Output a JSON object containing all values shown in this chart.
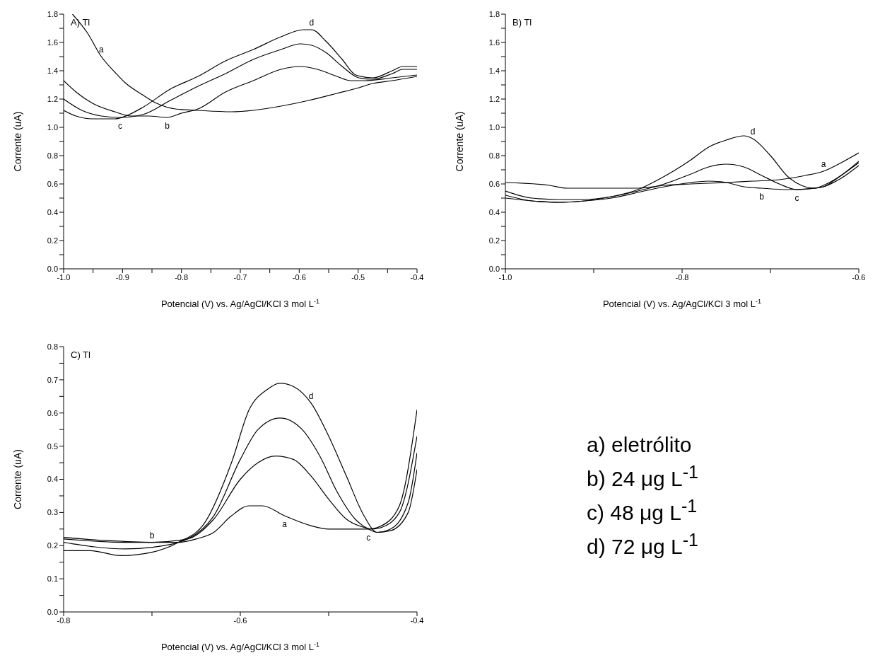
{
  "chart_data": [
    {
      "type": "line",
      "title": "A) Tl",
      "xlabel": "Potencial (V) vs. Ag/AgCl/KCl 3 mol L$^{-1}$",
      "ylabel": "Corrente (uA)",
      "marker": "none",
      "line_style": "solid",
      "xlim": [
        -1.0,
        -0.4
      ],
      "ylim": [
        0,
        1.8
      ],
      "xticks": [
        {
          "value": -1.0,
          "label": "-1.0"
        },
        {
          "value": -0.95,
          "label": null
        },
        {
          "value": -0.9,
          "label": "-0.9"
        },
        {
          "value": -0.85,
          "label": null
        },
        {
          "value": -0.8,
          "label": "-0.8"
        },
        {
          "value": -0.75,
          "label": null
        },
        {
          "value": -0.7,
          "label": "-0.7"
        },
        {
          "value": -0.65,
          "label": null
        },
        {
          "value": -0.6,
          "label": "-0.6"
        },
        {
          "value": -0.55,
          "label": null
        },
        {
          "value": -0.5,
          "label": "-0.5"
        },
        {
          "value": -0.45,
          "label": null
        },
        {
          "value": -0.4,
          "label": "-0.4"
        }
      ],
      "yticks": [
        {
          "value": 0,
          "label": "0.0"
        },
        {
          "value": 0.1,
          "label": null
        },
        {
          "value": 0.2,
          "label": "0.2"
        },
        {
          "value": 0.3,
          "label": null
        },
        {
          "value": 0.4,
          "label": "0.4"
        },
        {
          "value": 0.5,
          "label": null
        },
        {
          "value": 0.6,
          "label": "0.6"
        },
        {
          "value": 0.7,
          "label": null
        },
        {
          "value": 0.8,
          "label": "0.8"
        },
        {
          "value": 0.9,
          "label": null
        },
        {
          "value": 1.0,
          "label": "1.0"
        },
        {
          "value": 1.1,
          "label": null
        },
        {
          "value": 1.2,
          "label": "1.2"
        },
        {
          "value": 1.3,
          "label": null
        },
        {
          "value": 1.4,
          "label": "1.4"
        },
        {
          "value": 1.5,
          "label": null
        },
        {
          "value": 1.6,
          "label": "1.6"
        },
        {
          "value": 1.7,
          "label": null
        },
        {
          "value": 1.8,
          "label": "1.8"
        }
      ],
      "series": [
        {
          "name": "a",
          "color": "#000000",
          "x": [
            -0.985,
            -0.96,
            -0.936,
            -0.913,
            -0.894,
            -0.866,
            -0.842,
            -0.81,
            -0.772,
            -0.715,
            -0.678,
            -0.631,
            -0.584,
            -0.536,
            -0.499,
            -0.475,
            -0.442,
            -0.4
          ],
          "values": [
            1.8,
            1.67,
            1.5,
            1.39,
            1.31,
            1.23,
            1.17,
            1.13,
            1.12,
            1.11,
            1.12,
            1.15,
            1.19,
            1.24,
            1.28,
            1.31,
            1.33,
            1.36
          ]
        },
        {
          "name": "b",
          "color": "#000000",
          "x": [
            -1.0,
            -0.979,
            -0.951,
            -0.913,
            -0.885,
            -0.856,
            -0.824,
            -0.8,
            -0.772,
            -0.725,
            -0.678,
            -0.631,
            -0.598,
            -0.569,
            -0.536,
            -0.513,
            -0.489,
            -0.442,
            -0.4
          ],
          "values": [
            1.33,
            1.25,
            1.17,
            1.11,
            1.08,
            1.08,
            1.07,
            1.1,
            1.13,
            1.25,
            1.33,
            1.41,
            1.43,
            1.41,
            1.36,
            1.33,
            1.33,
            1.35,
            1.37
          ]
        },
        {
          "name": "c",
          "color": "#000000",
          "x": [
            -1.0,
            -0.969,
            -0.936,
            -0.904,
            -0.866,
            -0.819,
            -0.772,
            -0.725,
            -0.678,
            -0.631,
            -0.598,
            -0.579,
            -0.555,
            -0.527,
            -0.499,
            -0.475,
            -0.442,
            -0.424,
            -0.4
          ],
          "values": [
            1.2,
            1.12,
            1.08,
            1.07,
            1.09,
            1.19,
            1.29,
            1.38,
            1.48,
            1.55,
            1.59,
            1.58,
            1.53,
            1.43,
            1.35,
            1.34,
            1.38,
            1.41,
            1.41
          ]
        },
        {
          "name": "d",
          "color": "#000000",
          "x": [
            -1.0,
            -0.979,
            -0.951,
            -0.913,
            -0.889,
            -0.866,
            -0.819,
            -0.772,
            -0.725,
            -0.678,
            -0.631,
            -0.593,
            -0.579,
            -0.555,
            -0.527,
            -0.504,
            -0.475,
            -0.442,
            -0.424,
            -0.4
          ],
          "values": [
            1.12,
            1.08,
            1.06,
            1.06,
            1.09,
            1.14,
            1.27,
            1.36,
            1.47,
            1.55,
            1.64,
            1.69,
            1.69,
            1.61,
            1.48,
            1.37,
            1.35,
            1.4,
            1.43,
            1.43
          ]
        }
      ]
    },
    {
      "type": "line",
      "title": "B) Tl",
      "xlabel": "Potencial (V) vs. Ag/AgCl/KCl 3 mol L$^{-1}$",
      "ylabel": "Corrente (uA)",
      "marker": "none",
      "line_style": "solid",
      "xlim": [
        -1.0,
        -0.6
      ],
      "ylim": [
        0,
        1.8
      ],
      "xticks": [
        {
          "value": -1.0,
          "label": "-1.0"
        },
        {
          "value": -0.9,
          "label": null
        },
        {
          "value": -0.8,
          "label": "-0.8"
        },
        {
          "value": -0.7,
          "label": null
        },
        {
          "value": -0.6,
          "label": "-0.6"
        }
      ],
      "yticks": [
        {
          "value": 0,
          "label": "0.0"
        },
        {
          "value": 0.1,
          "label": null
        },
        {
          "value": 0.2,
          "label": "0.2"
        },
        {
          "value": 0.3,
          "label": null
        },
        {
          "value": 0.4,
          "label": "0.4"
        },
        {
          "value": 0.5,
          "label": null
        },
        {
          "value": 0.6,
          "label": "0.6"
        },
        {
          "value": 0.7,
          "label": null
        },
        {
          "value": 0.8,
          "label": "0.8"
        },
        {
          "value": 0.9,
          "label": null
        },
        {
          "value": 1.0,
          "label": "1.0"
        },
        {
          "value": 1.1,
          "label": null
        },
        {
          "value": 1.2,
          "label": "1.2"
        },
        {
          "value": 1.3,
          "label": null
        },
        {
          "value": 1.4,
          "label": "1.4"
        },
        {
          "value": 1.5,
          "label": null
        },
        {
          "value": 1.6,
          "label": "1.6"
        },
        {
          "value": 1.7,
          "label": null
        },
        {
          "value": 1.8,
          "label": "1.8"
        }
      ],
      "series": [
        {
          "name": "a",
          "color": "#000000",
          "x": [
            -1.0,
            -0.95,
            -0.93,
            -0.89,
            -0.85,
            -0.82,
            -0.79,
            -0.75,
            -0.72,
            -0.69,
            -0.66,
            -0.64,
            -0.62,
            -0.6
          ],
          "values": [
            0.61,
            0.59,
            0.57,
            0.57,
            0.57,
            0.59,
            0.6,
            0.61,
            0.62,
            0.63,
            0.66,
            0.69,
            0.75,
            0.82
          ]
        },
        {
          "name": "b",
          "color": "#000000",
          "x": [
            -1.0,
            -0.97,
            -0.94,
            -0.91,
            -0.88,
            -0.85,
            -0.82,
            -0.79,
            -0.77,
            -0.75,
            -0.73,
            -0.71,
            -0.68,
            -0.65,
            -0.64,
            -0.62,
            -0.6
          ],
          "values": [
            0.52,
            0.48,
            0.47,
            0.48,
            0.5,
            0.54,
            0.58,
            0.61,
            0.62,
            0.61,
            0.58,
            0.57,
            0.56,
            0.57,
            0.58,
            0.64,
            0.73
          ]
        },
        {
          "name": "c",
          "color": "#000000",
          "x": [
            -1.0,
            -0.97,
            -0.94,
            -0.91,
            -0.88,
            -0.85,
            -0.82,
            -0.79,
            -0.77,
            -0.75,
            -0.73,
            -0.71,
            -0.69,
            -0.67,
            -0.65,
            -0.64,
            -0.62,
            -0.6
          ],
          "values": [
            0.55,
            0.5,
            0.49,
            0.49,
            0.51,
            0.55,
            0.6,
            0.67,
            0.72,
            0.74,
            0.72,
            0.66,
            0.6,
            0.56,
            0.57,
            0.58,
            0.66,
            0.75
          ]
        },
        {
          "name": "d",
          "color": "#000000",
          "x": [
            -1.0,
            -0.97,
            -0.94,
            -0.91,
            -0.88,
            -0.85,
            -0.83,
            -0.81,
            -0.79,
            -0.77,
            -0.75,
            -0.73,
            -0.72,
            -0.7,
            -0.68,
            -0.665,
            -0.65,
            -0.64,
            -0.62,
            -0.6
          ],
          "values": [
            0.5,
            0.48,
            0.47,
            0.48,
            0.51,
            0.56,
            0.62,
            0.69,
            0.77,
            0.86,
            0.91,
            0.94,
            0.92,
            0.8,
            0.65,
            0.59,
            0.57,
            0.59,
            0.66,
            0.76
          ]
        }
      ]
    },
    {
      "type": "line",
      "title": "C) Tl",
      "xlabel": "Potencial (V) vs. Ag/AgCl/KCl 3 mol L$^{-1}$",
      "ylabel": "Corrente (uA)",
      "marker": "none",
      "line_style": "solid",
      "xlim": [
        -0.8,
        -0.4
      ],
      "ylim": [
        0,
        0.8
      ],
      "xticks": [
        {
          "value": -0.8,
          "label": "-0.8"
        },
        {
          "value": -0.7,
          "label": null
        },
        {
          "value": -0.6,
          "label": "-0.6"
        },
        {
          "value": -0.5,
          "label": null
        },
        {
          "value": -0.4,
          "label": "-0.4"
        }
      ],
      "yticks": [
        {
          "value": 0,
          "label": "0.0"
        },
        {
          "value": 0.05,
          "label": null
        },
        {
          "value": 0.1,
          "label": "0.1"
        },
        {
          "value": 0.15,
          "label": null
        },
        {
          "value": 0.2,
          "label": "0.2"
        },
        {
          "value": 0.25,
          "label": null
        },
        {
          "value": 0.3,
          "label": "0.3"
        },
        {
          "value": 0.35,
          "label": null
        },
        {
          "value": 0.4,
          "label": "0.4"
        },
        {
          "value": 0.45,
          "label": null
        },
        {
          "value": 0.5,
          "label": "0.5"
        },
        {
          "value": 0.55,
          "label": null
        },
        {
          "value": 0.6,
          "label": "0.6"
        },
        {
          "value": 0.65,
          "label": null
        },
        {
          "value": 0.7,
          "label": "0.7"
        },
        {
          "value": 0.75,
          "label": null
        },
        {
          "value": 0.8,
          "label": "0.8"
        }
      ],
      "series": [
        {
          "name": "a",
          "color": "#000000",
          "x": [
            -0.8,
            -0.73,
            -0.7,
            -0.67,
            -0.65,
            -0.63,
            -0.61,
            -0.59,
            -0.575,
            -0.55,
            -0.52,
            -0.5,
            -0.47,
            -0.455,
            -0.44,
            -0.42,
            -0.4
          ],
          "values": [
            0.22,
            0.21,
            0.21,
            0.21,
            0.22,
            0.24,
            0.29,
            0.32,
            0.32,
            0.29,
            0.26,
            0.25,
            0.25,
            0.25,
            0.26,
            0.32,
            0.61
          ]
        },
        {
          "name": "b",
          "color": "#000000",
          "x": [
            -0.8,
            -0.75,
            -0.7,
            -0.66,
            -0.63,
            -0.6,
            -0.58,
            -0.56,
            -0.54,
            -0.52,
            -0.5,
            -0.48,
            -0.46,
            -0.45,
            -0.44,
            -0.42,
            -0.4
          ],
          "values": [
            0.225,
            0.215,
            0.21,
            0.22,
            0.28,
            0.4,
            0.45,
            0.47,
            0.46,
            0.41,
            0.34,
            0.28,
            0.255,
            0.25,
            0.255,
            0.3,
            0.53
          ]
        },
        {
          "name": "c",
          "color": "#000000",
          "x": [
            -0.8,
            -0.73,
            -0.7,
            -0.66,
            -0.63,
            -0.6,
            -0.58,
            -0.555,
            -0.53,
            -0.51,
            -0.49,
            -0.47,
            -0.455,
            -0.445,
            -0.43,
            -0.41,
            -0.4
          ],
          "values": [
            0.21,
            0.19,
            0.195,
            0.22,
            0.29,
            0.46,
            0.55,
            0.585,
            0.55,
            0.47,
            0.36,
            0.28,
            0.25,
            0.24,
            0.25,
            0.33,
            0.48
          ]
        },
        {
          "name": "d",
          "color": "#000000",
          "x": [
            -0.8,
            -0.77,
            -0.735,
            -0.7,
            -0.67,
            -0.64,
            -0.61,
            -0.59,
            -0.57,
            -0.555,
            -0.54,
            -0.52,
            -0.5,
            -0.48,
            -0.46,
            -0.445,
            -0.43,
            -0.41,
            -0.4
          ],
          "values": [
            0.185,
            0.185,
            0.17,
            0.18,
            0.21,
            0.27,
            0.45,
            0.61,
            0.67,
            0.69,
            0.68,
            0.63,
            0.53,
            0.41,
            0.29,
            0.24,
            0.245,
            0.3,
            0.43
          ]
        }
      ]
    },
    {
      "type": "other",
      "annotations": [
        "a) eletrólito",
        "b) 24 μg L$^{-1}$",
        "c) 48 μg L$^{-1}$",
        "d) 72 μg L$^{-1}$"
      ]
    }
  ]
}
